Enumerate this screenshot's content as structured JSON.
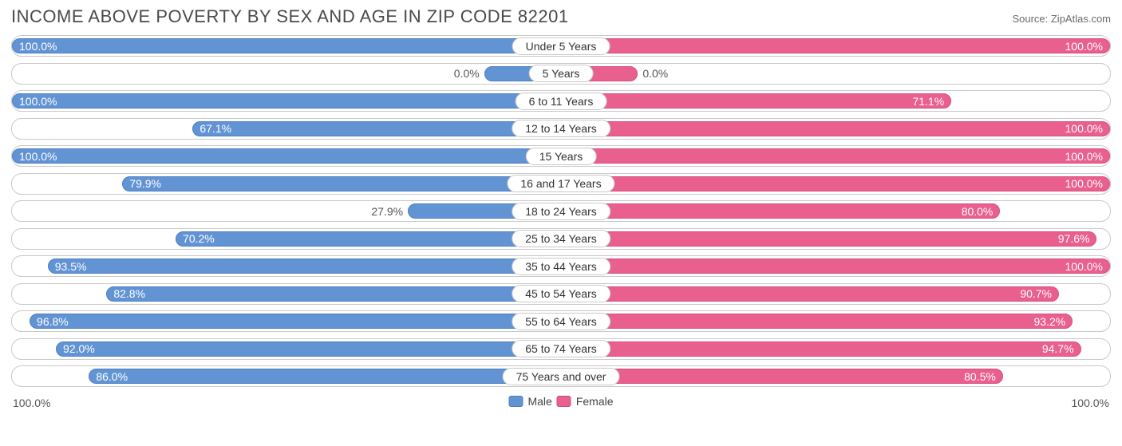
{
  "chart": {
    "type": "diverging-bar",
    "title": "INCOME ABOVE POVERTY BY SEX AND AGE IN ZIP CODE 82201",
    "source": "Source: ZipAtlas.com",
    "male_color": "#6294d4",
    "male_border": "#4a7fc3",
    "female_color": "#e95f8e",
    "female_border": "#d94c7c",
    "row_border_color": "#c9c9c9",
    "background_color": "#ffffff",
    "title_color": "#4a4a4a",
    "title_fontsize": 22,
    "label_fontsize": 14,
    "xmax": 100.0,
    "axis_left_label": "100.0%",
    "axis_right_label": "100.0%",
    "legend": {
      "male": "Male",
      "female": "Female"
    },
    "rows": [
      {
        "category": "Under 5 Years",
        "male": 100.0,
        "female": 100.0,
        "male_label": "100.0%",
        "female_label": "100.0%",
        "male_bar_pct": 100.0,
        "female_bar_pct": 100.0,
        "male_label_inside": true,
        "female_label_inside": true
      },
      {
        "category": "5 Years",
        "male": 0.0,
        "female": 0.0,
        "male_label": "0.0%",
        "female_label": "0.0%",
        "male_bar_pct": 14.0,
        "female_bar_pct": 14.0,
        "male_label_inside": false,
        "female_label_inside": false
      },
      {
        "category": "6 to 11 Years",
        "male": 100.0,
        "female": 71.1,
        "male_label": "100.0%",
        "female_label": "71.1%",
        "male_bar_pct": 100.0,
        "female_bar_pct": 71.1,
        "male_label_inside": true,
        "female_label_inside": true
      },
      {
        "category": "12 to 14 Years",
        "male": 67.1,
        "female": 100.0,
        "male_label": "67.1%",
        "female_label": "100.0%",
        "male_bar_pct": 67.1,
        "female_bar_pct": 100.0,
        "male_label_inside": true,
        "female_label_inside": true
      },
      {
        "category": "15 Years",
        "male": 100.0,
        "female": 100.0,
        "male_label": "100.0%",
        "female_label": "100.0%",
        "male_bar_pct": 100.0,
        "female_bar_pct": 100.0,
        "male_label_inside": true,
        "female_label_inside": true
      },
      {
        "category": "16 and 17 Years",
        "male": 79.9,
        "female": 100.0,
        "male_label": "79.9%",
        "female_label": "100.0%",
        "male_bar_pct": 79.9,
        "female_bar_pct": 100.0,
        "male_label_inside": true,
        "female_label_inside": true
      },
      {
        "category": "18 to 24 Years",
        "male": 27.9,
        "female": 80.0,
        "male_label": "27.9%",
        "female_label": "80.0%",
        "male_bar_pct": 27.9,
        "female_bar_pct": 80.0,
        "male_label_inside": false,
        "female_label_inside": true
      },
      {
        "category": "25 to 34 Years",
        "male": 70.2,
        "female": 97.6,
        "male_label": "70.2%",
        "female_label": "97.6%",
        "male_bar_pct": 70.2,
        "female_bar_pct": 97.6,
        "male_label_inside": true,
        "female_label_inside": true
      },
      {
        "category": "35 to 44 Years",
        "male": 93.5,
        "female": 100.0,
        "male_label": "93.5%",
        "female_label": "100.0%",
        "male_bar_pct": 93.5,
        "female_bar_pct": 100.0,
        "male_label_inside": true,
        "female_label_inside": true
      },
      {
        "category": "45 to 54 Years",
        "male": 82.8,
        "female": 90.7,
        "male_label": "82.8%",
        "female_label": "90.7%",
        "male_bar_pct": 82.8,
        "female_bar_pct": 90.7,
        "male_label_inside": true,
        "female_label_inside": true
      },
      {
        "category": "55 to 64 Years",
        "male": 96.8,
        "female": 93.2,
        "male_label": "96.8%",
        "female_label": "93.2%",
        "male_bar_pct": 96.8,
        "female_bar_pct": 93.2,
        "male_label_inside": true,
        "female_label_inside": true
      },
      {
        "category": "65 to 74 Years",
        "male": 92.0,
        "female": 94.7,
        "male_label": "92.0%",
        "female_label": "94.7%",
        "male_bar_pct": 92.0,
        "female_bar_pct": 94.7,
        "male_label_inside": true,
        "female_label_inside": true
      },
      {
        "category": "75 Years and over",
        "male": 86.0,
        "female": 80.5,
        "male_label": "86.0%",
        "female_label": "80.5%",
        "male_bar_pct": 86.0,
        "female_bar_pct": 80.5,
        "male_label_inside": true,
        "female_label_inside": true
      }
    ]
  }
}
